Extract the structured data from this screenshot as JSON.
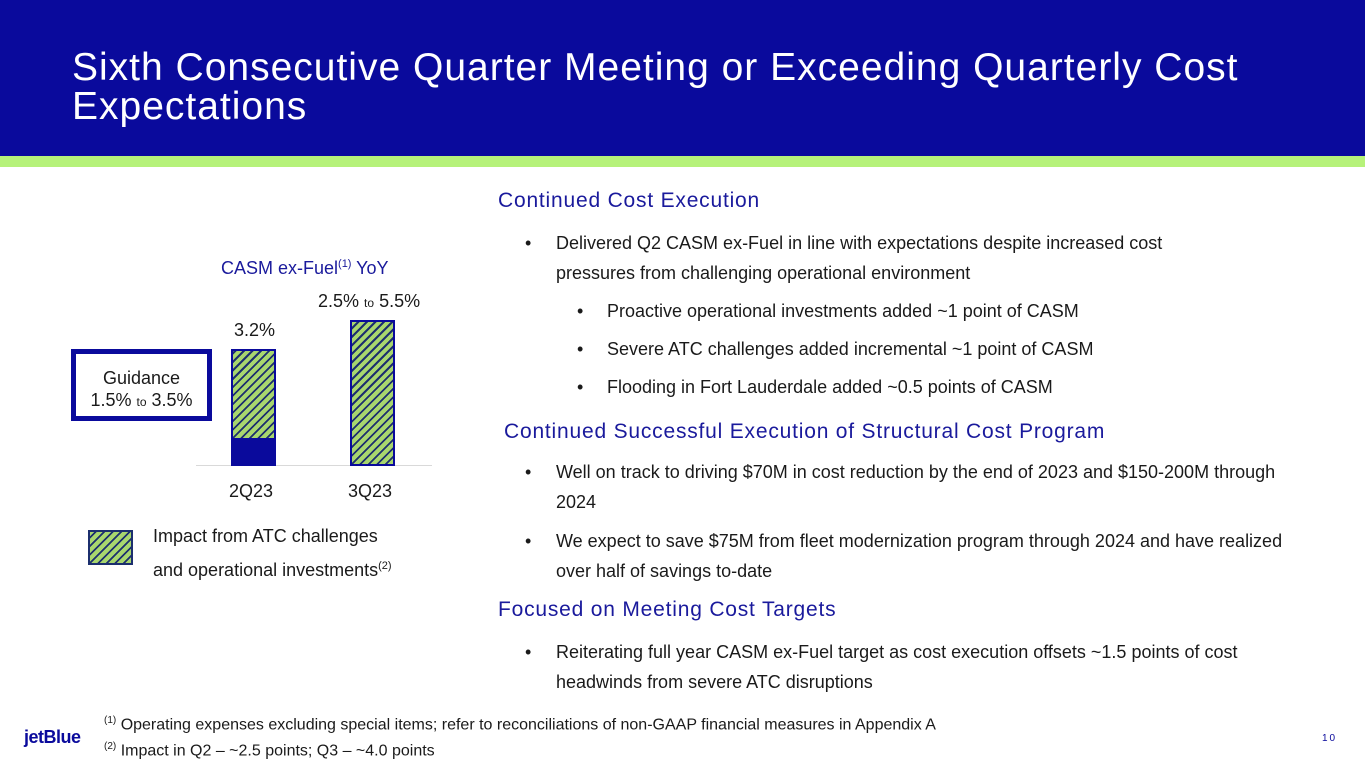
{
  "title": "Sixth Consecutive Quarter Meeting or Exceeding Quarterly Cost Expectations",
  "chart_data": {
    "type": "bar",
    "title": "CASM ex-Fuel",
    "title_sup": "(1)",
    "title_suffix": "YoY",
    "categories": [
      "2Q23",
      "3Q23"
    ],
    "ylim": [
      0,
      5.5
    ],
    "series": [
      {
        "name": "",
        "values": [
          0.7,
          0
        ]
      },
      {
        "name": "Impact from ATC challenges and operational investments",
        "values": [
          2.5,
          4.0
        ]
      }
    ],
    "data_labels": {
      "q2": "3.2%",
      "q3_low": "2.5%",
      "q3_to": "to",
      "q3_high": "5.5%"
    },
    "guidance": {
      "heading": "Guidance",
      "low": "1.5%",
      "to": "to",
      "high": "3.5%"
    },
    "legend": {
      "line1": "Impact from ATC challenges",
      "line2": "and operational investments",
      "sup": "(2)",
      "position": "bottom-left"
    },
    "colors": {
      "solid": "#0a0a9c",
      "hatch_light": "#a8d66e",
      "hatch_dark": "#1c2f6e"
    }
  },
  "sections": [
    {
      "heading": "Continued Cost Execution",
      "bullets": [
        "Delivered Q2 CASM ex-Fuel in line with expectations despite increased cost pressures from challenging operational environment"
      ],
      "subbullets": [
        "Proactive operational investments added ~1 point of CASM",
        "Severe ATC challenges added incremental ~1 point of CASM",
        "Flooding in Fort Lauderdale added ~0.5 points of CASM"
      ]
    },
    {
      "heading": "Continued Successful Execution of Structural Cost Program",
      "bullets": [
        "Well on track to driving $70M in cost reduction by the end of 2023 and $150-200M through 2024",
        "We expect to save $75M from fleet modernization program through 2024 and have realized over half of savings to-date"
      ]
    },
    {
      "heading": "Focused on Meeting Cost Targets",
      "bullets": [
        "Reiterating full year CASM ex-Fuel target as cost execution offsets ~1.5 points of cost headwinds from severe ATC disruptions"
      ]
    }
  ],
  "bullet_glyph": "•",
  "footnotes": [
    {
      "mark": "(1)",
      "text": "Operating expenses excluding special items; refer to reconciliations of non-GAAP financial measures in Appendix A"
    },
    {
      "mark": "(2)",
      "text": "Impact in Q2 – ~2.5 points; Q3 – ~4.0 points"
    }
  ],
  "logo": "jetBlue",
  "page_number": "10"
}
